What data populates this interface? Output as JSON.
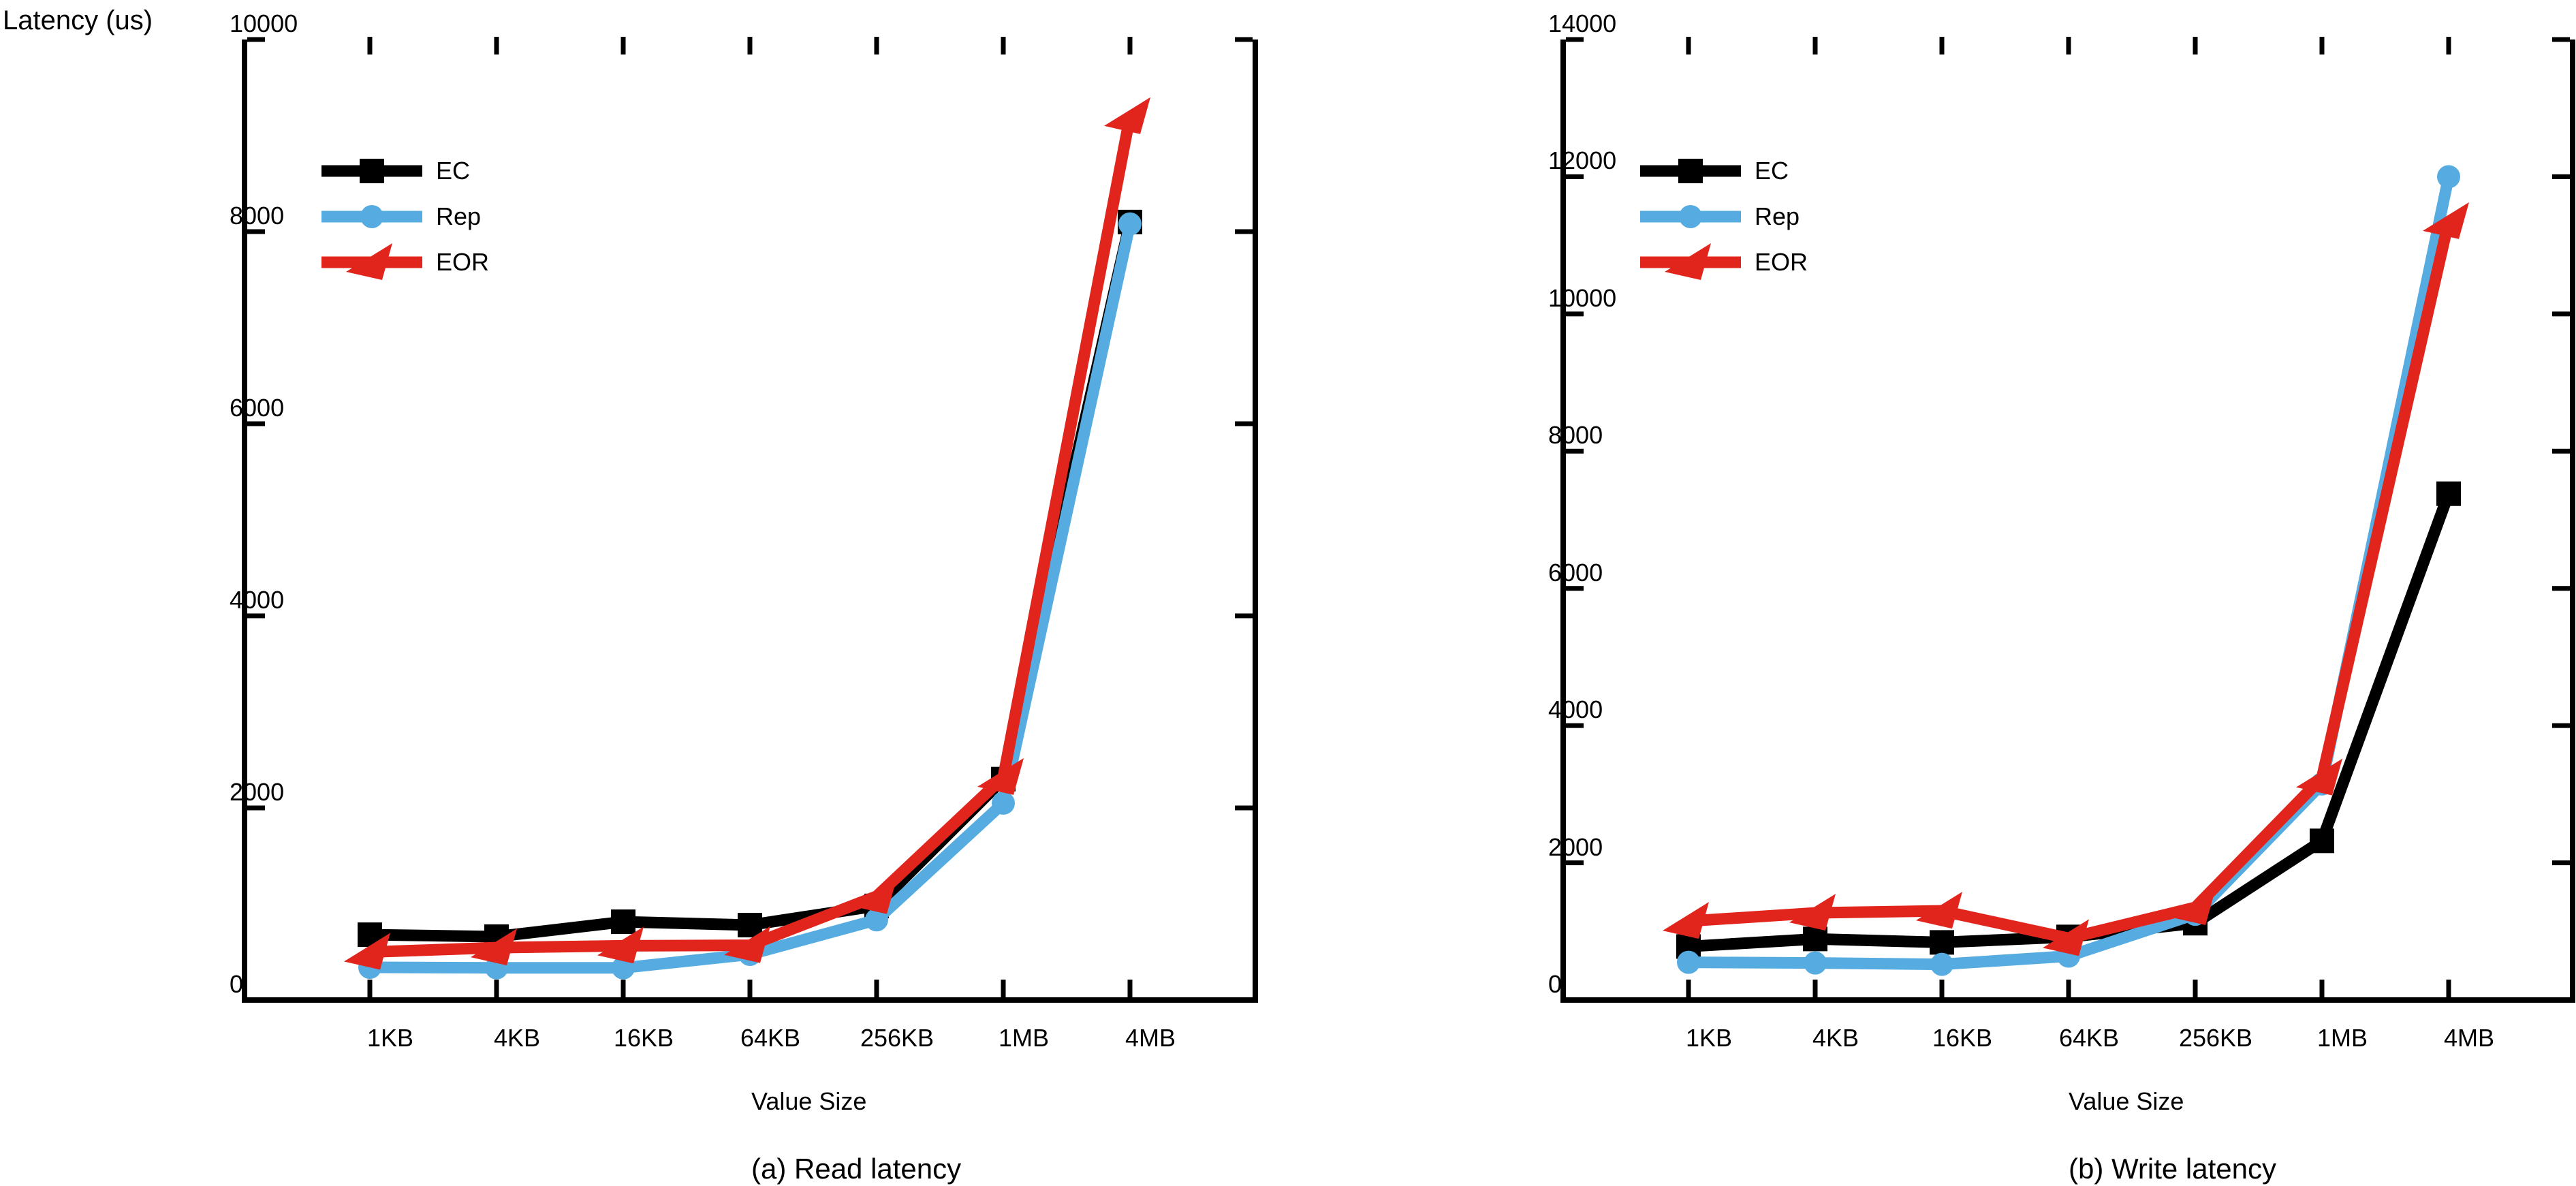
{
  "figure": {
    "ylabel": "Latency (us)"
  },
  "chart_data": [
    {
      "type": "line",
      "title": "(a) Read latency",
      "xlabel": "Value Size",
      "ylabel": "Latency (us)",
      "categories": [
        "1KB",
        "4KB",
        "16KB",
        "64KB",
        "256KB",
        "1MB",
        "4MB"
      ],
      "ylim": [
        0,
        10000
      ],
      "yticks": [
        0,
        2000,
        4000,
        6000,
        8000,
        10000
      ],
      "grid": false,
      "legend_position": "top-left",
      "series": [
        {
          "name": "EC",
          "marker": "square",
          "color": "#000000",
          "values": [
            680,
            660,
            815,
            780,
            980,
            2300,
            8100
          ]
        },
        {
          "name": "Rep",
          "marker": "circle",
          "color": "#56ACE0",
          "values": [
            340,
            335,
            335,
            475,
            835,
            2050,
            8080
          ]
        },
        {
          "name": "EOR",
          "marker": "dart",
          "color": "#E1251C",
          "values": [
            500,
            545,
            565,
            570,
            1080,
            2320,
            9200
          ]
        }
      ]
    },
    {
      "type": "line",
      "title": "(b) Write latency",
      "xlabel": "Value Size",
      "ylabel": "Latency (us)",
      "categories": [
        "1KB",
        "4KB",
        "16KB",
        "64KB",
        "256KB",
        "1MB",
        "4MB"
      ],
      "ylim": [
        0,
        14000
      ],
      "yticks": [
        0,
        2000,
        4000,
        6000,
        8000,
        10000,
        12000,
        14000
      ],
      "grid": false,
      "legend_position": "top-left",
      "series": [
        {
          "name": "EC",
          "marker": "square",
          "color": "#000000",
          "values": [
            780,
            890,
            840,
            920,
            1120,
            2320,
            7380
          ]
        },
        {
          "name": "Rep",
          "marker": "circle",
          "color": "#56ACE0",
          "values": [
            550,
            540,
            520,
            640,
            1250,
            3150,
            12000
          ]
        },
        {
          "name": "EOR",
          "marker": "dart",
          "color": "#E1251C",
          "values": [
            1150,
            1270,
            1300,
            900,
            1350,
            3240,
            11350
          ]
        }
      ]
    }
  ]
}
